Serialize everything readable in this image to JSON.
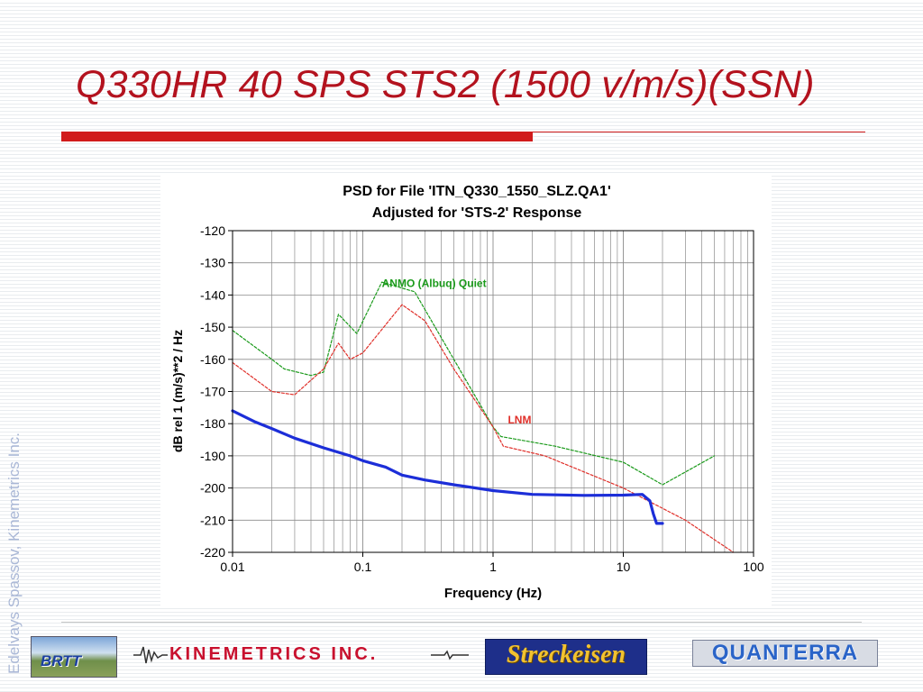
{
  "slide": {
    "title": "Q330HR 40 SPS STS2 (1500 v/m/s)(SSN)",
    "side_credit": "Edelvays Spassov, Kinemetrics Inc.",
    "accent_color": "#d11b1b",
    "title_color": "#b3121e"
  },
  "chart_data": {
    "type": "line",
    "title": "PSD for File 'ITN_Q330_1550_SLZ.QA1'",
    "subtitle": "Adjusted for 'STS-2' Response",
    "xlabel": "Frequency (Hz)",
    "ylabel": "dB rel 1 (m/s)**2 / Hz",
    "x_scale": "log",
    "xlim": [
      0.01,
      100
    ],
    "ylim": [
      -220,
      -120
    ],
    "x_ticks": [
      0.01,
      0.1,
      1,
      10,
      100
    ],
    "x_tick_labels": [
      "0.01",
      "0.1",
      "1",
      "10",
      "100"
    ],
    "y_ticks": [
      -120,
      -130,
      -140,
      -150,
      -160,
      -170,
      -180,
      -190,
      -200,
      -210,
      -220
    ],
    "y_tick_labels": [
      "-120",
      "-130",
      "-140",
      "-150",
      "-160",
      "-170",
      "-180",
      "-190",
      "-200",
      "-210",
      "-220"
    ],
    "grid": true,
    "series": [
      {
        "name": "ANMO (Albuq) Quiet",
        "color": "#1a9a1a",
        "style": "dashed",
        "label_at": [
          0.14,
          -137.5
        ],
        "x": [
          0.01,
          0.02,
          0.025,
          0.04,
          0.05,
          0.065,
          0.09,
          0.14,
          0.25,
          0.5,
          1.0,
          1.15,
          3.0,
          10.0,
          20.0,
          50.0
        ],
        "y": [
          -151,
          -160,
          -163,
          -165,
          -164,
          -146,
          -152,
          -136,
          -139,
          -160,
          -181,
          -184,
          -187,
          -192,
          -199,
          -190
        ]
      },
      {
        "name": "LNM",
        "color": "#e0302a",
        "style": "dashed",
        "label_at": [
          1.3,
          -180
        ],
        "x": [
          0.01,
          0.02,
          0.03,
          0.05,
          0.065,
          0.08,
          0.1,
          0.2,
          0.3,
          0.5,
          1.0,
          1.2,
          2.5,
          10.0,
          30.0,
          70.0
        ],
        "y": [
          -161,
          -170,
          -171,
          -163,
          -155,
          -160,
          -158,
          -143,
          -148,
          -163,
          -181,
          -187,
          -190,
          -200,
          -210,
          -220
        ]
      },
      {
        "name": "",
        "color": "#1c2ed8",
        "style": "solid",
        "x": [
          0.01,
          0.015,
          0.02,
          0.03,
          0.05,
          0.08,
          0.1,
          0.15,
          0.2,
          0.3,
          0.5,
          1.0,
          2.0,
          5.0,
          10.0,
          14.0,
          16.0,
          17.0,
          18.0,
          20.0
        ],
        "y": [
          -176,
          -179.5,
          -181.5,
          -184.5,
          -187.5,
          -190,
          -191.5,
          -193.5,
          -196,
          -197.5,
          -199,
          -200.8,
          -202,
          -202.3,
          -202.2,
          -202,
          -204,
          -208,
          -211,
          -211
        ]
      }
    ]
  }
}
